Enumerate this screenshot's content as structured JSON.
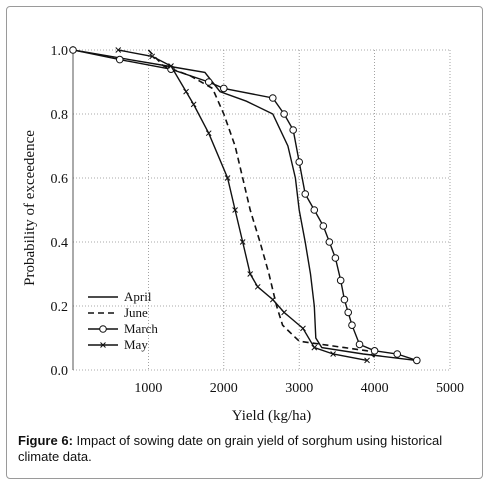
{
  "caption": {
    "label": "Figure 6:",
    "text": "Impact of sowing date on grain yield of sorghum using historical climate data."
  },
  "chart_data": {
    "type": "line",
    "xlabel": "Yield (kg/ha)",
    "ylabel": "Probability of exceedence",
    "xlim": [
      0,
      5000
    ],
    "ylim": [
      0,
      1.0
    ],
    "x_ticks": [
      "1000",
      "2000",
      "3000",
      "4000",
      "5000"
    ],
    "y_ticks": [
      "0.0",
      "0.2",
      "0.4",
      "0.6",
      "0.8",
      "1.0"
    ],
    "grid": true,
    "legend_position": "bottom-left",
    "series": [
      {
        "name": "April",
        "style": "solid",
        "points": [
          [
            0,
            1.0
          ],
          [
            1250,
            0.95
          ],
          [
            1750,
            0.93
          ],
          [
            1950,
            0.87
          ],
          [
            2300,
            0.84
          ],
          [
            2650,
            0.8
          ],
          [
            2850,
            0.7
          ],
          [
            2950,
            0.6
          ],
          [
            3000,
            0.5
          ],
          [
            3080,
            0.4
          ],
          [
            3150,
            0.3
          ],
          [
            3200,
            0.2
          ],
          [
            3220,
            0.1
          ],
          [
            3300,
            0.07
          ],
          [
            3850,
            0.05
          ],
          [
            4550,
            0.03
          ]
        ]
      },
      {
        "name": "June",
        "style": "dashed",
        "points": [
          [
            1000,
            1.0
          ],
          [
            1200,
            0.95
          ],
          [
            1550,
            0.92
          ],
          [
            1850,
            0.88
          ],
          [
            2000,
            0.8
          ],
          [
            2150,
            0.7
          ],
          [
            2250,
            0.6
          ],
          [
            2350,
            0.5
          ],
          [
            2480,
            0.4
          ],
          [
            2600,
            0.3
          ],
          [
            2700,
            0.2
          ],
          [
            2780,
            0.14
          ],
          [
            3000,
            0.09
          ],
          [
            3600,
            0.07
          ],
          [
            3900,
            0.06
          ],
          [
            4000,
            0.04
          ]
        ]
      },
      {
        "name": "March",
        "style": "solid-circle",
        "points": [
          [
            0,
            1.0
          ],
          [
            620,
            0.97
          ],
          [
            1300,
            0.94
          ],
          [
            1800,
            0.9
          ],
          [
            2000,
            0.88
          ],
          [
            2650,
            0.85
          ],
          [
            2800,
            0.8
          ],
          [
            2920,
            0.75
          ],
          [
            3000,
            0.65
          ],
          [
            3080,
            0.55
          ],
          [
            3200,
            0.5
          ],
          [
            3320,
            0.45
          ],
          [
            3400,
            0.4
          ],
          [
            3480,
            0.35
          ],
          [
            3550,
            0.28
          ],
          [
            3600,
            0.22
          ],
          [
            3650,
            0.18
          ],
          [
            3700,
            0.14
          ],
          [
            3800,
            0.08
          ],
          [
            4000,
            0.06
          ],
          [
            4300,
            0.05
          ],
          [
            4560,
            0.03
          ]
        ]
      },
      {
        "name": "May",
        "style": "solid-cross",
        "points": [
          [
            600,
            1.0
          ],
          [
            1050,
            0.98
          ],
          [
            1300,
            0.95
          ],
          [
            1500,
            0.87
          ],
          [
            1600,
            0.83
          ],
          [
            1800,
            0.74
          ],
          [
            2050,
            0.6
          ],
          [
            2150,
            0.5
          ],
          [
            2250,
            0.4
          ],
          [
            2350,
            0.3
          ],
          [
            2450,
            0.26
          ],
          [
            2650,
            0.22
          ],
          [
            2800,
            0.18
          ],
          [
            3050,
            0.13
          ],
          [
            3200,
            0.07
          ],
          [
            3450,
            0.05
          ],
          [
            3900,
            0.03
          ]
        ]
      }
    ]
  }
}
